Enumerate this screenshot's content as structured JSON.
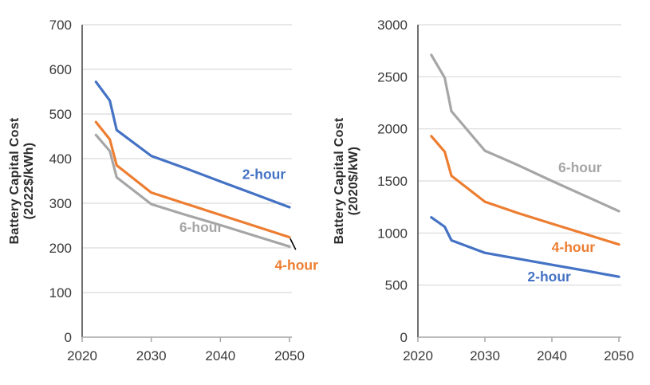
{
  "page": {
    "background": "#ffffff",
    "text_color": "#3a3a3a",
    "gridline_color": "#d9d9d9",
    "axis_color": "#a6a6a6",
    "y_axis_color": "#404040"
  },
  "chart_data": [
    {
      "type": "line",
      "id": "battery-cost-per-kwh",
      "ylabel": "Battery Capital Cost (2022$/kWh)",
      "ylabel_lines": [
        "Battery Capital Cost",
        "(2022$/kWh)"
      ],
      "xlabel": "",
      "xlim": [
        2020,
        2050
      ],
      "ylim": [
        0,
        700
      ],
      "xticks": [
        2020,
        2030,
        2040,
        2050
      ],
      "yticks": [
        0,
        100,
        200,
        300,
        400,
        500,
        600,
        700
      ],
      "grid": "horizontal",
      "legend_position": "inline-labels",
      "x": [
        2022,
        2024,
        2025,
        2030,
        2035,
        2040,
        2045,
        2050
      ],
      "series": [
        {
          "name": "6-hour",
          "color": "#a6a6a6",
          "values": [
            453,
            417,
            358,
            298,
            274,
            251,
            227,
            203
          ],
          "label": {
            "text": "6-hour",
            "x": 2037.2,
            "y": 246
          }
        },
        {
          "name": "4-hour",
          "color": "#ed7d31",
          "values": [
            482,
            443,
            385,
            324,
            299,
            274,
            249,
            224
          ],
          "label": {
            "text": "4-hour",
            "x": 2051.0,
            "y": 162
          }
        },
        {
          "name": "2-hour",
          "color": "#4472c4",
          "values": [
            572,
            530,
            464,
            406,
            378,
            349,
            320,
            291
          ],
          "label": {
            "text": "2-hour",
            "x": 2046.3,
            "y": 365
          }
        }
      ],
      "leader_line": {
        "x1": 2050.1,
        "y1": 221,
        "x2": 2050.9,
        "y2": 196,
        "color": "#000000"
      }
    },
    {
      "type": "line",
      "id": "battery-cost-per-kw",
      "ylabel": "Battery Capital Cost (2020$/kW)",
      "ylabel_lines": [
        "Battery Capital Cost",
        "(2020$/kW)"
      ],
      "xlabel": "",
      "xlim": [
        2020,
        2050
      ],
      "ylim": [
        0,
        3000
      ],
      "xticks": [
        2020,
        2030,
        2040,
        2050
      ],
      "yticks": [
        0,
        500,
        1000,
        1500,
        2000,
        2500,
        3000
      ],
      "grid": "horizontal",
      "legend_position": "inline-labels",
      "x": [
        2022,
        2024,
        2025,
        2030,
        2035,
        2040,
        2045,
        2050
      ],
      "series": [
        {
          "name": "6-hour",
          "color": "#a6a6a6",
          "values": [
            2710,
            2490,
            2170,
            1790,
            1650,
            1500,
            1355,
            1210
          ],
          "label": {
            "text": "6-hour",
            "x": 2044.2,
            "y": 1630
          }
        },
        {
          "name": "4-hour",
          "color": "#ed7d31",
          "values": [
            1930,
            1780,
            1550,
            1300,
            1190,
            1090,
            990,
            890
          ],
          "label": {
            "text": "4-hour",
            "x": 2043.2,
            "y": 865
          }
        },
        {
          "name": "2-hour",
          "color": "#4472c4",
          "values": [
            1150,
            1060,
            930,
            810,
            752,
            695,
            638,
            580
          ],
          "label": {
            "text": "2-hour",
            "x": 2039.6,
            "y": 581
          }
        }
      ]
    }
  ]
}
